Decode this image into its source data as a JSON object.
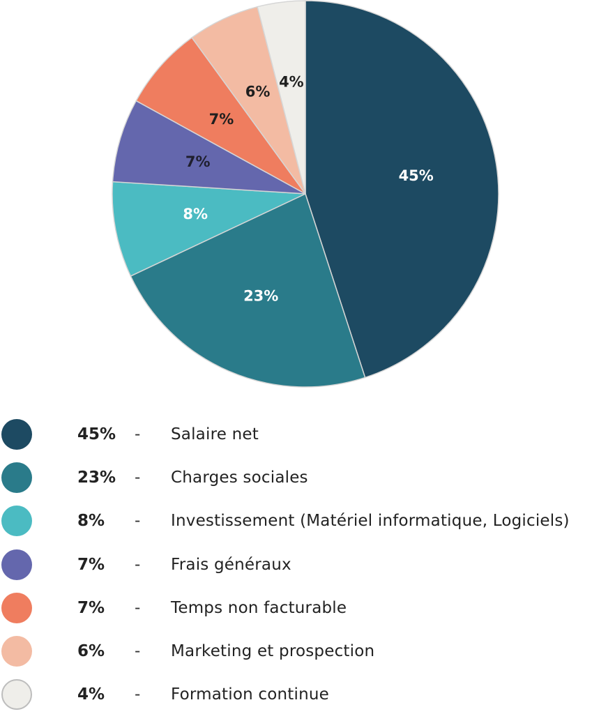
{
  "chart_data": {
    "type": "pie",
    "start": "top, clockwise",
    "slices": [
      {
        "label": "Salaire net",
        "value": 45,
        "display": "45%",
        "color": "#1d4a62",
        "text_color": "#ffffff"
      },
      {
        "label": "Charges sociales",
        "value": 23,
        "display": "23%",
        "color": "#2a7b8a",
        "text_color": "#ffffff"
      },
      {
        "label": "Investissement (Matériel informatique, Logiciels)",
        "value": 8,
        "display": "8%",
        "color": "#4bbbc2",
        "text_color": "#ffffff"
      },
      {
        "label": "Frais généraux",
        "value": 7,
        "display": "7%",
        "color": "#6467ad",
        "text_color": "#1f1f2e"
      },
      {
        "label": "Temps non facturable",
        "value": 7,
        "display": "7%",
        "color": "#ef7d5f",
        "text_color": "#1f1f1f"
      },
      {
        "label": "Marketing et prospection",
        "value": 6,
        "display": "6%",
        "color": "#f3bba3",
        "text_color": "#1f1f1f"
      },
      {
        "label": "Formation continue",
        "value": 4,
        "display": "4%",
        "color": "#efeeea",
        "text_color": "#1f1f1f"
      }
    ],
    "legend_placement": "bottom",
    "legend_separator": "-"
  }
}
